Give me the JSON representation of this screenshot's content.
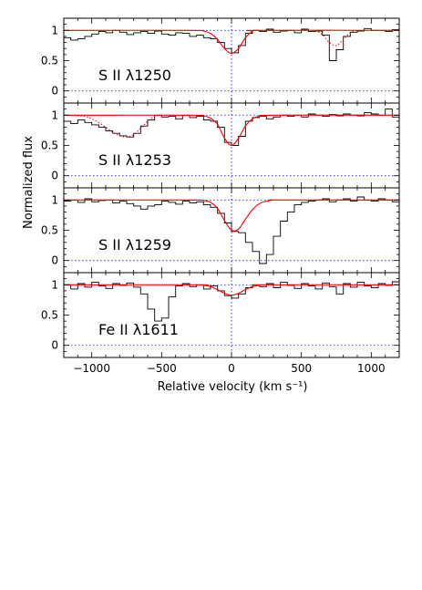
{
  "chart_data": {
    "type": "line",
    "ylabel": "Normalized flux",
    "xlabel": "Relative velocity (km s⁻¹)",
    "xlim": [
      -1200,
      1200
    ],
    "ylim": [
      -0.2,
      1.2
    ],
    "xticks": [
      -1000,
      -500,
      0,
      500,
      1000
    ],
    "yticks": [
      0,
      0.5,
      1
    ],
    "reference_lines": {
      "continuum": 1,
      "zero": 0,
      "systemic_velocity": 0
    },
    "colors": {
      "data": "#000000",
      "model": "#ff0000",
      "reference": "#0000ff"
    },
    "panels": [
      {
        "label": "S II λ1250",
        "data": {
          "x": [
            -1200,
            -1150,
            -1100,
            -1050,
            -1000,
            -950,
            -900,
            -850,
            -800,
            -750,
            -700,
            -650,
            -600,
            -550,
            -500,
            -450,
            -400,
            -350,
            -300,
            -250,
            -200,
            -150,
            -100,
            -50,
            0,
            50,
            100,
            150,
            200,
            250,
            300,
            350,
            400,
            450,
            500,
            550,
            600,
            650,
            700,
            750,
            800,
            850,
            900,
            950,
            1000,
            1050,
            1100,
            1150
          ],
          "y": [
            0.88,
            0.84,
            0.86,
            0.9,
            0.94,
            0.98,
            0.96,
            1.0,
            0.97,
            0.93,
            0.96,
            0.98,
            0.95,
            0.99,
            0.94,
            0.92,
            0.96,
            0.95,
            0.9,
            0.92,
            0.88,
            0.86,
            0.8,
            0.7,
            0.63,
            0.75,
            0.95,
            1.0,
            0.98,
            1.02,
            0.97,
            0.99,
            1.0,
            0.96,
            1.02,
            0.98,
            0.99,
            0.92,
            0.5,
            0.68,
            0.9,
            0.97,
            0.99,
            1.03,
            1.0,
            1.0,
            0.98,
            1.01
          ]
        },
        "model": {
          "x": [
            -1200,
            -300,
            -200,
            -150,
            -100,
            -50,
            0,
            50,
            100,
            150,
            200,
            1200
          ],
          "y": [
            1.0,
            1.0,
            0.99,
            0.95,
            0.85,
            0.7,
            0.62,
            0.7,
            0.88,
            0.98,
            1.0,
            1.0
          ]
        },
        "model_blend": {
          "x": [
            600,
            650,
            700,
            750,
            800,
            850,
            900
          ],
          "y": [
            1.0,
            0.93,
            0.8,
            0.75,
            0.85,
            0.96,
            1.0
          ]
        }
      },
      {
        "label": "S II λ1253",
        "data": {
          "x": [
            -1200,
            -1150,
            -1100,
            -1050,
            -1000,
            -950,
            -900,
            -850,
            -800,
            -750,
            -700,
            -650,
            -600,
            -550,
            -500,
            -450,
            -400,
            -350,
            -300,
            -250,
            -200,
            -150,
            -100,
            -50,
            0,
            50,
            100,
            150,
            200,
            250,
            300,
            350,
            400,
            450,
            500,
            550,
            600,
            650,
            700,
            750,
            800,
            850,
            900,
            950,
            1000,
            1050,
            1100,
            1150
          ],
          "y": [
            0.9,
            0.86,
            0.92,
            0.88,
            0.84,
            0.8,
            0.74,
            0.7,
            0.66,
            0.64,
            0.7,
            0.82,
            0.92,
            1.0,
            0.97,
            0.98,
            0.94,
            1.0,
            0.96,
            0.98,
            0.92,
            0.9,
            0.8,
            0.55,
            0.5,
            0.65,
            0.9,
            0.96,
            0.98,
            0.94,
            0.97,
            1.0,
            0.98,
            1.0,
            0.97,
            1.02,
            1.0,
            0.98,
            1.01,
            0.99,
            1.02,
            1.0,
            0.99,
            1.04,
            1.02,
            1.0,
            1.1,
            0.97
          ]
        },
        "model": {
          "x": [
            -1200,
            -300,
            -200,
            -150,
            -100,
            -50,
            0,
            50,
            100,
            150,
            200,
            300,
            1200
          ],
          "y": [
            1.0,
            1.0,
            0.99,
            0.95,
            0.85,
            0.62,
            0.5,
            0.62,
            0.82,
            0.94,
            0.98,
            1.0,
            1.0
          ]
        },
        "model_blend": {
          "x": [
            -1150,
            -1050,
            -1000,
            -950,
            -900,
            -850,
            -800,
            -750,
            -700,
            -650,
            -600,
            -550,
            -500
          ],
          "y": [
            1.0,
            0.98,
            0.94,
            0.88,
            0.8,
            0.72,
            0.66,
            0.64,
            0.68,
            0.78,
            0.9,
            0.98,
            1.0
          ]
        }
      },
      {
        "label": "S II λ1259",
        "data": {
          "x": [
            -1200,
            -1150,
            -1100,
            -1050,
            -1000,
            -950,
            -900,
            -850,
            -800,
            -750,
            -700,
            -650,
            -600,
            -550,
            -500,
            -450,
            -400,
            -350,
            -300,
            -250,
            -200,
            -150,
            -100,
            -50,
            0,
            50,
            100,
            150,
            200,
            250,
            300,
            350,
            400,
            450,
            500,
            550,
            600,
            650,
            700,
            750,
            800,
            850,
            900,
            950,
            1000,
            1050,
            1100,
            1150
          ],
          "y": [
            0.98,
            1.0,
            0.96,
            1.02,
            0.97,
            0.99,
            1.0,
            0.95,
            0.98,
            0.94,
            0.9,
            0.85,
            0.9,
            0.92,
            0.98,
            0.96,
            0.93,
            0.98,
            0.95,
            0.97,
            0.92,
            0.88,
            0.78,
            0.62,
            0.48,
            0.46,
            0.3,
            0.15,
            -0.05,
            0.1,
            0.4,
            0.65,
            0.8,
            0.92,
            0.96,
            0.98,
            1.0,
            1.02,
            0.97,
            1.0,
            1.02,
            0.98,
            1.05,
            1.0,
            0.98,
            1.02,
            1.0,
            0.97
          ]
        },
        "model": {
          "x": [
            -1200,
            -300,
            -200,
            -150,
            -100,
            -50,
            0,
            50,
            100,
            150,
            200,
            250,
            300,
            350,
            1200
          ],
          "y": [
            1.0,
            1.0,
            0.99,
            0.96,
            0.86,
            0.66,
            0.5,
            0.52,
            0.68,
            0.84,
            0.94,
            0.98,
            1.0,
            1.0,
            1.0
          ]
        }
      },
      {
        "label": "Fe II λ1611",
        "data": {
          "x": [
            -1200,
            -1150,
            -1100,
            -1050,
            -1000,
            -950,
            -900,
            -850,
            -800,
            -750,
            -700,
            -650,
            -600,
            -550,
            -500,
            -450,
            -400,
            -350,
            -300,
            -250,
            -200,
            -150,
            -100,
            -50,
            0,
            50,
            100,
            150,
            200,
            250,
            300,
            350,
            400,
            450,
            500,
            550,
            600,
            650,
            700,
            750,
            800,
            850,
            900,
            950,
            1000,
            1050,
            1100,
            1150
          ],
          "y": [
            1.0,
            0.93,
            1.02,
            0.96,
            1.04,
            0.98,
            0.94,
            1.02,
            0.99,
            1.03,
            0.96,
            0.85,
            0.6,
            0.4,
            0.45,
            0.8,
            0.98,
            1.02,
            0.97,
            1.0,
            0.93,
            0.98,
            0.9,
            0.82,
            0.78,
            0.85,
            0.95,
            1.0,
            0.97,
            1.02,
            0.95,
            1.04,
            0.99,
            0.94,
            1.02,
            0.98,
            0.93,
            1.03,
            0.97,
            0.85,
            1.02,
            0.96,
            1.04,
            0.98,
            0.95,
            1.02,
            0.99,
            1.05
          ]
        },
        "model": {
          "x": [
            -1200,
            -250,
            -200,
            -150,
            -100,
            -50,
            0,
            50,
            100,
            150,
            200,
            250,
            1200
          ],
          "y": [
            1.0,
            1.0,
            0.99,
            0.97,
            0.92,
            0.86,
            0.83,
            0.86,
            0.92,
            0.97,
            0.99,
            1.0,
            1.0
          ]
        }
      }
    ]
  }
}
